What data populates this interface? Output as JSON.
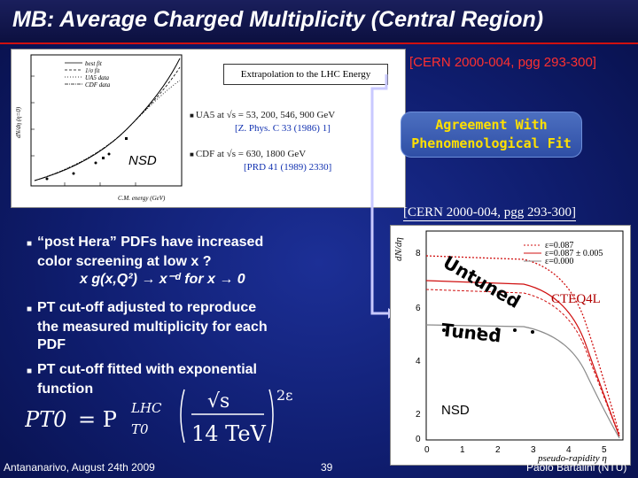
{
  "header": {
    "title": "MB: Average Charged Multiplicity (Central Region)"
  },
  "references": {
    "top": "[CERN 2000-004, pgg 293-300]",
    "middle": "[CERN 2000-004, pgg 293-300]"
  },
  "left_plot": {
    "extrapolation_label": "Extrapolation to the LHC Energy",
    "ylabel": "dN/dη (η=0)",
    "xlabel": "C.M. energy (GeV)",
    "legend": [
      "best fit",
      "1/σ fit",
      "UA5 data",
      "CDF data"
    ],
    "ua5_line": "UA5 at √s = 53, 200, 546, 900 GeV",
    "ua5_ref": "[Z. Phys. C 33 (1986) 1]",
    "cdf_line": "CDF at √s = 630, 1800 GeV",
    "cdf_ref": "[PRD 41 (1989) 2330]",
    "nsd": "NSD"
  },
  "callout": {
    "line1": "Agreement With",
    "line2": "Phenomenological Fit"
  },
  "right_plot": {
    "ylabel": "dN/dη",
    "xlabel": "pseudo-rapidity η",
    "legend": [
      "ε=0.087",
      "ε=0.087 ± 0.005",
      "ε=0.000"
    ],
    "untuned": "Untuned",
    "tuned": "Tuned",
    "pdf": "CTEQ4L",
    "nsd": "NSD",
    "colors": {
      "red": "#d01010",
      "black": "#000000",
      "gray": "#8a8a8a"
    }
  },
  "bullets": {
    "b1_l1": "“post Hera” PDFs have increased",
    "b1_l2": "color screening at  low x ?",
    "b1_l3": "x g(x,Q²) → x⁻ᵈ  for  x → 0",
    "b2_l1": "PT cut-off adjusted to reproduce",
    "b2_l2": "the measured multiplicity for each",
    "b2_l3": "PDF",
    "b3_l1": "PT cut-off fitted with exponential",
    "b3_l2": "function"
  },
  "formula": {
    "lhs": "PT0",
    "eq": "= P",
    "sup": "LHC",
    "sub": "T0",
    "num": "√s",
    "den": "14 TeV",
    "exp": "2ε"
  },
  "footer": {
    "left": "Antananarivo, August 24th 2009",
    "page": "39",
    "right": "Paolo Bartalini (NTU)"
  }
}
